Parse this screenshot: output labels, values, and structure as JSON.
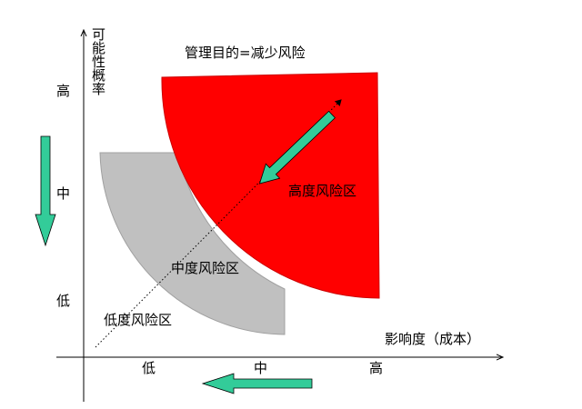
{
  "title": "管理目的=减少风险",
  "y_axis": {
    "label": "可能性概率",
    "ticks": [
      "高",
      "中",
      "低"
    ]
  },
  "x_axis": {
    "label": "影响度（成本）",
    "ticks": [
      "低",
      "中",
      "高"
    ]
  },
  "zones": {
    "high": "高度风险区",
    "medium": "中度风险区",
    "low": "低度风险区"
  },
  "colors": {
    "high_zone": "#ff0000",
    "medium_zone": "#c0c0c0",
    "arrow": "#33cc99",
    "axis": "#000000"
  }
}
